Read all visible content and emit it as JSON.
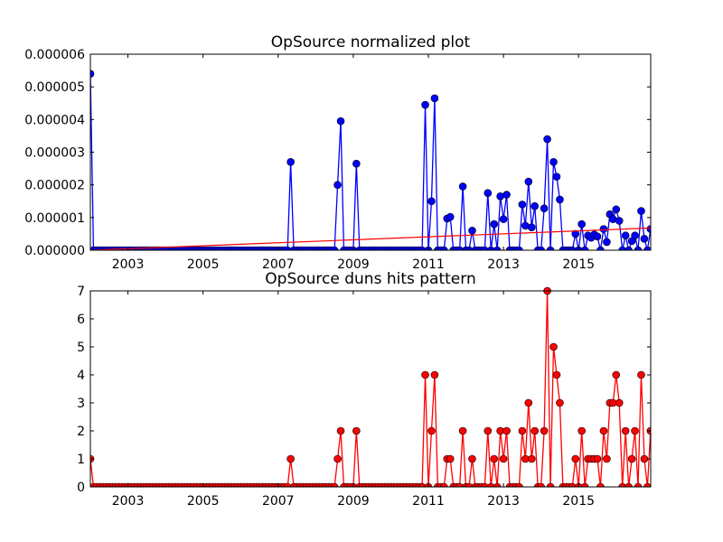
{
  "chart_data": [
    {
      "type": "line",
      "title": "OpSource normalized plot",
      "xlabel": "",
      "ylabel": "",
      "xlim": [
        2002.0,
        2016.92
      ],
      "ylim": [
        0,
        6e-06
      ],
      "x_ticks": [
        "2003",
        "2005",
        "2007",
        "2009",
        "2011",
        "2013",
        "2015"
      ],
      "y_ticks": [
        "0.000000",
        "0.000001",
        "0.000002",
        "0.000003",
        "0.000004",
        "0.000005",
        "0.000006"
      ],
      "grid": false,
      "series": [
        {
          "color": "#0000ff",
          "marker": "circle",
          "points": [
            [
              2002.0,
              5.4e-06
            ],
            [
              2007.33,
              2.7e-06
            ],
            [
              2008.58,
              2e-06
            ],
            [
              2008.67,
              3.95e-06
            ],
            [
              2009.08,
              2.65e-06
            ],
            [
              2010.92,
              4.45e-06
            ],
            [
              2011.08,
              1.5e-06
            ],
            [
              2011.17,
              4.65e-06
            ],
            [
              2011.5,
              9.7e-07
            ],
            [
              2011.58,
              1.02e-06
            ],
            [
              2011.92,
              1.95e-06
            ],
            [
              2012.17,
              6e-07
            ],
            [
              2012.58,
              1.75e-06
            ],
            [
              2012.75,
              8e-07
            ],
            [
              2012.92,
              1.65e-06
            ],
            [
              2013.0,
              9.5e-07
            ],
            [
              2013.08,
              1.7e-06
            ],
            [
              2013.5,
              1.4e-06
            ],
            [
              2013.58,
              7.5e-07
            ],
            [
              2013.67,
              2.1e-06
            ],
            [
              2013.75,
              7e-07
            ],
            [
              2013.83,
              1.35e-06
            ],
            [
              2014.08,
              1.28e-06
            ],
            [
              2014.17,
              3.4e-06
            ],
            [
              2014.33,
              2.7e-06
            ],
            [
              2014.42,
              2.25e-06
            ],
            [
              2014.5,
              1.55e-06
            ],
            [
              2014.92,
              5e-07
            ],
            [
              2015.08,
              8e-07
            ],
            [
              2015.25,
              4.5e-07
            ],
            [
              2015.33,
              3.8e-07
            ],
            [
              2015.42,
              4.8e-07
            ],
            [
              2015.5,
              4.2e-07
            ],
            [
              2015.67,
              6.5e-07
            ],
            [
              2015.75,
              2.5e-07
            ],
            [
              2015.83,
              1.1e-06
            ],
            [
              2015.92,
              9.5e-07
            ],
            [
              2016.0,
              1.25e-06
            ],
            [
              2016.08,
              9e-07
            ],
            [
              2016.25,
              4.5e-07
            ],
            [
              2016.42,
              2.8e-07
            ],
            [
              2016.5,
              4.5e-07
            ],
            [
              2016.67,
              1.2e-06
            ],
            [
              2016.75,
              3.5e-07
            ],
            [
              2016.92,
              6.5e-07
            ]
          ]
        },
        {
          "color": "#ff0000",
          "marker": "none",
          "trend_line": [
            [
              2002.0,
              0.0
            ],
            [
              2016.92,
              6.8e-07
            ]
          ]
        }
      ]
    },
    {
      "type": "line",
      "title": "OpSource duns hits pattern",
      "xlabel": "",
      "ylabel": "",
      "xlim": [
        2002.0,
        2016.92
      ],
      "ylim": [
        0,
        7
      ],
      "x_ticks": [
        "2003",
        "2005",
        "2007",
        "2009",
        "2011",
        "2013",
        "2015"
      ],
      "y_ticks": [
        "0",
        "1",
        "2",
        "3",
        "4",
        "5",
        "6",
        "7"
      ],
      "grid": false,
      "series": [
        {
          "color": "#ff0000",
          "marker": "circle",
          "points": [
            [
              2002.0,
              1
            ],
            [
              2007.33,
              1
            ],
            [
              2008.58,
              1
            ],
            [
              2008.67,
              2
            ],
            [
              2009.08,
              2
            ],
            [
              2010.92,
              4
            ],
            [
              2011.08,
              2
            ],
            [
              2011.17,
              4
            ],
            [
              2011.5,
              1
            ],
            [
              2011.58,
              1
            ],
            [
              2011.92,
              2
            ],
            [
              2012.17,
              1
            ],
            [
              2012.58,
              2
            ],
            [
              2012.75,
              1
            ],
            [
              2012.92,
              2
            ],
            [
              2013.0,
              1
            ],
            [
              2013.08,
              2
            ],
            [
              2013.5,
              2
            ],
            [
              2013.58,
              1
            ],
            [
              2013.67,
              3
            ],
            [
              2013.75,
              1
            ],
            [
              2013.83,
              2
            ],
            [
              2014.08,
              2
            ],
            [
              2014.17,
              7
            ],
            [
              2014.33,
              5
            ],
            [
              2014.42,
              4
            ],
            [
              2014.5,
              3
            ],
            [
              2014.92,
              1
            ],
            [
              2015.08,
              2
            ],
            [
              2015.25,
              1
            ],
            [
              2015.33,
              1
            ],
            [
              2015.42,
              1
            ],
            [
              2015.5,
              1
            ],
            [
              2015.67,
              2
            ],
            [
              2015.75,
              1
            ],
            [
              2015.83,
              3
            ],
            [
              2015.92,
              3
            ],
            [
              2016.0,
              4
            ],
            [
              2016.08,
              3
            ],
            [
              2016.25,
              2
            ],
            [
              2016.42,
              1
            ],
            [
              2016.5,
              2
            ],
            [
              2016.67,
              4
            ],
            [
              2016.75,
              1
            ],
            [
              2016.92,
              2
            ]
          ]
        }
      ]
    }
  ]
}
